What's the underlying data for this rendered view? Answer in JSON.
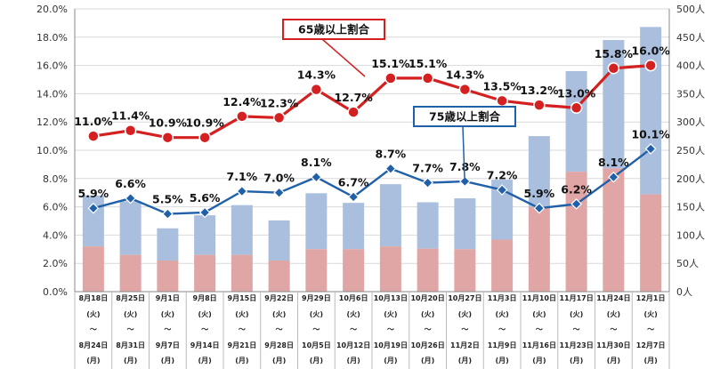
{
  "chart_data": {
    "type": "bar+line",
    "categories": [
      {
        "start": "8月18日",
        "start_day": "(火)",
        "end": "8月24日",
        "end_day": "(月)"
      },
      {
        "start": "8月25日",
        "start_day": "(火)",
        "end": "8月31日",
        "end_day": "(月)"
      },
      {
        "start": "9月1日",
        "start_day": "(火)",
        "end": "9月7日",
        "end_day": "(月)"
      },
      {
        "start": "9月8日",
        "start_day": "(火)",
        "end": "9月14日",
        "end_day": "(月)"
      },
      {
        "start": "9月15日",
        "start_day": "(火)",
        "end": "9月21日",
        "end_day": "(月)"
      },
      {
        "start": "9月22日",
        "start_day": "(火)",
        "end": "9月28日",
        "end_day": "(月)"
      },
      {
        "start": "9月29日",
        "start_day": "(火)",
        "end": "10月5日",
        "end_day": "(月)"
      },
      {
        "start": "10月6日",
        "start_day": "(火)",
        "end": "10月12日",
        "end_day": "(月)"
      },
      {
        "start": "10月13日",
        "start_day": "(火)",
        "end": "10月19日",
        "end_day": "(月)"
      },
      {
        "start": "10月20日",
        "start_day": "(火)",
        "end": "10月26日",
        "end_day": "(月)"
      },
      {
        "start": "10月27日",
        "start_day": "(火)",
        "end": "11月2日",
        "end_day": "(月)"
      },
      {
        "start": "11月3日",
        "start_day": "(火)",
        "end": "11月9日",
        "end_day": "(月)"
      },
      {
        "start": "11月10日",
        "start_day": "(火)",
        "end": "11月16日",
        "end_day": "(月)"
      },
      {
        "start": "11月17日",
        "start_day": "(火)",
        "end": "11月23日",
        "end_day": "(月)"
      },
      {
        "start": "11月24日",
        "start_day": "(火)",
        "end": "11月30日",
        "end_day": "(月)"
      },
      {
        "start": "12月1日",
        "start_day": "(火)",
        "end": "12月7日",
        "end_day": "(月)"
      }
    ],
    "range_separator": "～",
    "bars_total": [
      170,
      160,
      112,
      135,
      153,
      126,
      174,
      157,
      190,
      158,
      165,
      198,
      275,
      390,
      445,
      468
    ],
    "bars_lower": [
      80,
      65,
      55,
      65,
      65,
      55,
      75,
      75,
      80,
      76,
      75,
      92,
      150,
      212,
      218,
      172
    ],
    "series": [
      {
        "name": "65歳以上割合",
        "color": "#d42020",
        "values": [
          11.0,
          11.4,
          10.9,
          10.9,
          12.4,
          12.3,
          14.3,
          12.7,
          15.1,
          15.1,
          14.3,
          13.5,
          13.2,
          13.0,
          15.8,
          16.0
        ],
        "labels": [
          "11.0%",
          "11.4%",
          "10.9%",
          "10.9%",
          "12.4%",
          "12.3%",
          "14.3%",
          "12.7%",
          "15.1%",
          "15.1%",
          "14.3%",
          "13.5%",
          "13.2%",
          "13.0%",
          "15.8%",
          "16.0%"
        ]
      },
      {
        "name": "75歳以上割合",
        "color": "#2060a8",
        "values": [
          5.9,
          6.6,
          5.5,
          5.6,
          7.1,
          7.0,
          8.1,
          6.7,
          8.7,
          7.7,
          7.8,
          7.2,
          5.9,
          6.2,
          8.1,
          10.1
        ],
        "labels": [
          "5.9%",
          "6.6%",
          "5.5%",
          "5.6%",
          "7.1%",
          "7.0%",
          "8.1%",
          "6.7%",
          "8.7%",
          "7.7%",
          "7.8%",
          "7.2%",
          "5.9%",
          "6.2%",
          "8.1%",
          "10.1%"
        ]
      }
    ],
    "ylim_left": [
      0,
      20
    ],
    "ylim_right": [
      0,
      500
    ],
    "left_ticks": [
      "0.0%",
      "2.0%",
      "4.0%",
      "6.0%",
      "8.0%",
      "10.0%",
      "12.0%",
      "14.0%",
      "16.0%",
      "18.0%",
      "20.0%"
    ],
    "right_ticks": [
      "0人",
      "50人",
      "100人",
      "150人",
      "200人",
      "250人",
      "300人",
      "350人",
      "400人",
      "450人",
      "500人"
    ],
    "grid": true,
    "colors": {
      "bar_upper": "#a9bfdd",
      "bar_lower": "#e0a5a5",
      "grid": "#d9d9d9"
    },
    "legend_boxes": [
      {
        "text": "65歳以上割合",
        "color": "#d42020"
      },
      {
        "text": "75歳以上割合",
        "color": "#2060a8"
      }
    ]
  }
}
